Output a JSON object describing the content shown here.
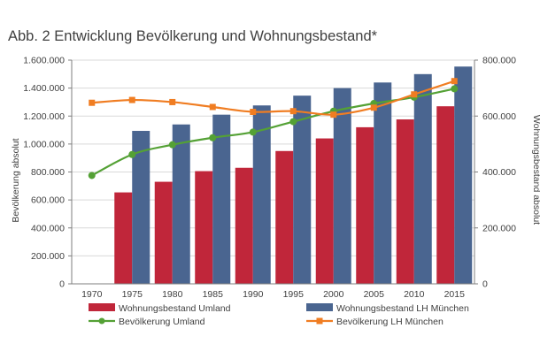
{
  "chart_data": {
    "type": "bar",
    "title": "Abb. 2 Entwicklung Bevölkerung und Wohnungsbestand*",
    "categories": [
      "1970",
      "1975",
      "1980",
      "1985",
      "1990",
      "1995",
      "2000",
      "2005",
      "2010",
      "2015"
    ],
    "ylabel": "Bevölkerung absolut",
    "y2label": "Wohnungsbestand absolut",
    "ylim": [
      0,
      1600000
    ],
    "y2lim": [
      0,
      800000
    ],
    "yticks": [
      "0",
      "200.000",
      "400.000",
      "600.000",
      "800.000",
      "1.000.000",
      "1.200.000",
      "1.400.000",
      "1.600.000"
    ],
    "y2ticks": [
      "0",
      "200.000",
      "400.000",
      "600.000",
      "800.000"
    ],
    "legend_position": "bottom",
    "grid": true,
    "bar_series": [
      {
        "name": "Wohnungsbestand Umland",
        "axis": "right",
        "color": "#c0263a",
        "values": [
          null,
          327000,
          365000,
          403000,
          415000,
          475000,
          520000,
          560000,
          588000,
          635000
        ]
      },
      {
        "name": "Wohnungsbestand LH München",
        "axis": "right",
        "color": "#4a6590",
        "values": [
          null,
          547000,
          570000,
          605000,
          638000,
          673000,
          700000,
          720000,
          750000,
          777000
        ]
      }
    ],
    "line_series": [
      {
        "name": "Bevölkerung Umland",
        "axis": "left",
        "color": "#54a135",
        "marker": "circle",
        "values": [
          775000,
          925000,
          995000,
          1045000,
          1085000,
          1160000,
          1235000,
          1290000,
          1335000,
          1395000
        ]
      },
      {
        "name": "Bevölkerung LH München",
        "axis": "left",
        "color": "#f07d22",
        "marker": "square",
        "values": [
          1295000,
          1315000,
          1300000,
          1265000,
          1230000,
          1235000,
          1210000,
          1260000,
          1355000,
          1450000
        ]
      }
    ]
  }
}
